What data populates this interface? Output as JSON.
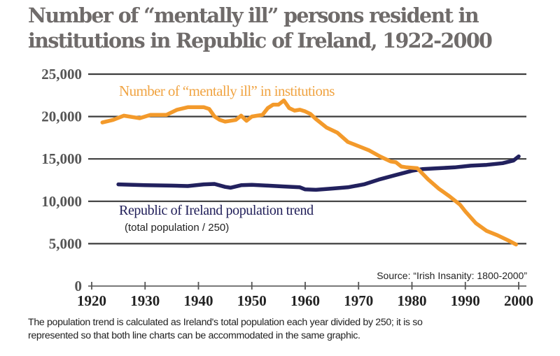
{
  "chart_data": {
    "type": "line",
    "title": "Number of “mentally ill” persons resident in institutions in Republic of Ireland, 1922-2000",
    "title_lines": [
      "Number of “mentally ill” persons resident in",
      "institutions in Republic of Ireland, 1922-2000"
    ],
    "xlabel": "",
    "ylabel": "",
    "xlim": [
      1920,
      2000
    ],
    "ylim": [
      0,
      25000
    ],
    "x_ticks": [
      1920,
      1930,
      1940,
      1950,
      1960,
      1970,
      1980,
      1990,
      2000
    ],
    "x_tick_labels": [
      "1920",
      "1930",
      "1940",
      "1950",
      "1960",
      "1970",
      "1980",
      "1990",
      "2000"
    ],
    "y_ticks": [
      0,
      5000,
      10000,
      15000,
      20000,
      25000
    ],
    "y_tick_labels": [
      "0",
      "5,000",
      "10,000",
      "15,000",
      "20,000",
      "25,000"
    ],
    "grid": true,
    "series": [
      {
        "name": "Number of “mentally ill” in institutions",
        "color": "#f39a2b",
        "x": [
          1922,
          1924,
          1926,
          1928,
          1929,
          1931,
          1934,
          1936,
          1938,
          1941,
          1942,
          1943,
          1944,
          1945,
          1946,
          1947,
          1948,
          1949,
          1950,
          1951,
          1952,
          1953,
          1954,
          1955,
          1956,
          1957,
          1958,
          1959,
          1960,
          1961,
          1962,
          1964,
          1966,
          1968,
          1970,
          1972,
          1974,
          1976,
          1977,
          1978,
          1979,
          1981,
          1983,
          1985,
          1987,
          1989,
          1990,
          1992,
          1994,
          1996,
          1998,
          1999.5
        ],
        "values": [
          19300,
          19600,
          20100,
          19900,
          19800,
          20200,
          20200,
          20800,
          21100,
          21100,
          20900,
          20000,
          19600,
          19400,
          19500,
          19600,
          20100,
          19500,
          20000,
          20100,
          20200,
          21000,
          21400,
          21400,
          21900,
          21000,
          20700,
          20800,
          20600,
          20300,
          19700,
          18700,
          18100,
          17000,
          16500,
          16000,
          15300,
          14700,
          14600,
          14100,
          14000,
          13900,
          12600,
          11500,
          10600,
          9600,
          8800,
          7400,
          6500,
          6000,
          5400,
          4900
        ]
      },
      {
        "name": "Republic of Ireland population trend",
        "subtitle": "(total population / 250)",
        "color": "#22215e",
        "x": [
          1925,
          1930,
          1935,
          1938,
          1941,
          1943,
          1945,
          1946,
          1948,
          1950,
          1953,
          1956,
          1959,
          1960,
          1962,
          1965,
          1968,
          1971,
          1974,
          1977,
          1980,
          1982,
          1985,
          1988,
          1991,
          1994,
          1997,
          1999,
          2000
        ],
        "values": [
          12000,
          11900,
          11850,
          11800,
          12000,
          12050,
          11700,
          11600,
          11900,
          11950,
          11850,
          11750,
          11650,
          11400,
          11350,
          11500,
          11650,
          12000,
          12600,
          13100,
          13600,
          13800,
          13900,
          14000,
          14200,
          14300,
          14500,
          14800,
          15300
        ]
      }
    ],
    "annotations": {
      "orange_label": "Number of “mentally ill” in institutions",
      "navy_label": "Republic of Ireland population trend",
      "navy_sublabel": "(total population / 250)",
      "source": "Source: “Irish Insanity: 1800-2000”"
    },
    "footnote_lines": [
      "The population trend is calculated as Ireland's total population each year divided by 250; it is so",
      "represented so that both line charts can be accommodated in the same graphic."
    ]
  }
}
